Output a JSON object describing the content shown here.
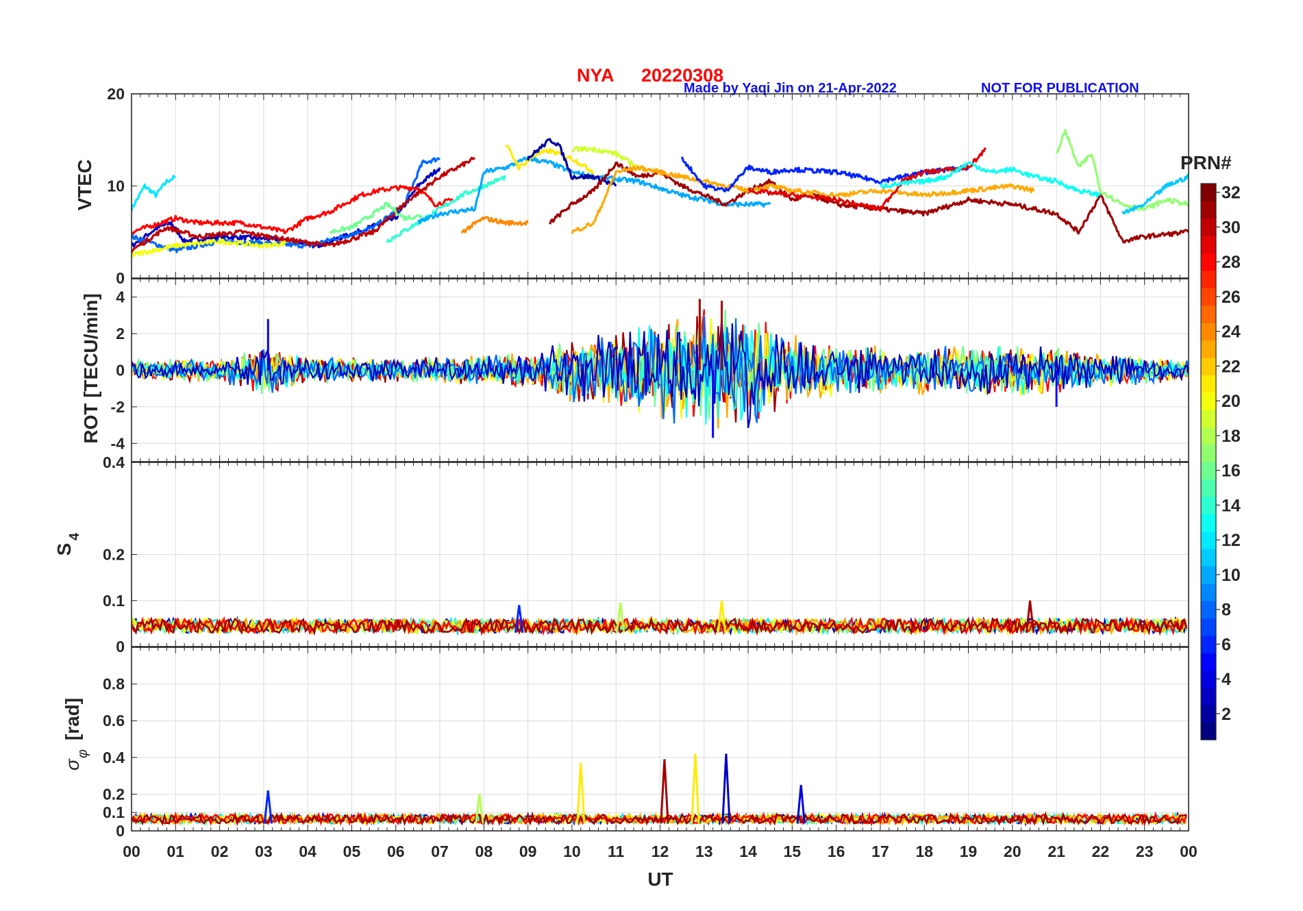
{
  "header": {
    "station": "NYA",
    "date": "20220308",
    "credit": "Made by Yaqi Jin on 21-Apr-2022",
    "notice": "NOT FOR PUBLICATION"
  },
  "colors": {
    "title": "#ff0000",
    "credit": "#1010ee"
  },
  "chart_data": {
    "type": "line",
    "x_axis": {
      "label": "UT",
      "ticks": [
        "00",
        "01",
        "02",
        "03",
        "04",
        "05",
        "06",
        "07",
        "08",
        "09",
        "10",
        "11",
        "12",
        "13",
        "14",
        "15",
        "16",
        "17",
        "18",
        "19",
        "20",
        "21",
        "22",
        "23",
        "00"
      ],
      "range_hours": [
        0,
        24
      ]
    },
    "colorbar": {
      "label": "PRN#",
      "range": [
        1,
        32
      ],
      "ticks": [
        "2",
        "4",
        "6",
        "8",
        "10",
        "12",
        "14",
        "16",
        "18",
        "20",
        "22",
        "24",
        "26",
        "28",
        "30",
        "32"
      ],
      "colormap": "jet",
      "levels": 32
    },
    "panels": [
      {
        "id": "vtec",
        "ylabel": "VTEC",
        "ylim": [
          0,
          20
        ],
        "yticks": [
          "0",
          "10",
          "20"
        ],
        "series_summary": [
          {
            "prn": 12,
            "points": [
              [
                0.0,
                7.5
              ],
              [
                0.3,
                10.0
              ],
              [
                0.55,
                9.0
              ],
              [
                0.8,
                10.5
              ],
              [
                1.0,
                11.0
              ]
            ]
          },
          {
            "prn": 3,
            "points": [
              [
                0.0,
                3.5
              ],
              [
                0.6,
                5.5
              ],
              [
                0.9,
                6.0
              ],
              [
                1.2,
                4.0
              ],
              [
                2.0,
                4.5
              ],
              [
                3.5,
                4.2
              ],
              [
                4.2,
                3.5
              ],
              [
                5.0,
                4.8
              ],
              [
                6.0,
                6.5
              ],
              [
                6.5,
                10.0
              ],
              [
                7.0,
                12.0
              ]
            ]
          },
          {
            "prn": 8,
            "points": [
              [
                0.0,
                4.5
              ],
              [
                1.0,
                3.0
              ],
              [
                2.0,
                4.0
              ],
              [
                3.0,
                3.8
              ],
              [
                4.0,
                3.5
              ],
              [
                4.8,
                4.5
              ],
              [
                5.5,
                5.5
              ],
              [
                6.2,
                8.0
              ],
              [
                6.6,
                12.5
              ],
              [
                7.0,
                13.0
              ]
            ]
          },
          {
            "prn": 28,
            "points": [
              [
                0.0,
                5.0
              ],
              [
                1.0,
                6.5
              ],
              [
                1.5,
                6.0
              ],
              [
                2.5,
                6.0
              ],
              [
                3.5,
                5.0
              ],
              [
                4.0,
                6.5
              ],
              [
                4.5,
                7.2
              ],
              [
                5.2,
                9.0
              ],
              [
                5.6,
                9.5
              ],
              [
                6.0,
                9.8
              ],
              [
                6.5,
                9.8
              ],
              [
                6.9,
                8.0
              ],
              [
                7.3,
                8.5
              ]
            ]
          },
          {
            "prn": 30,
            "points": [
              [
                0.0,
                3.0
              ],
              [
                0.8,
                5.5
              ],
              [
                1.5,
                4.5
              ],
              [
                2.5,
                5.0
              ],
              [
                3.5,
                4.2
              ],
              [
                4.5,
                3.5
              ],
              [
                5.5,
                5.0
              ],
              [
                6.3,
                8.5
              ],
              [
                7.0,
                11.0
              ],
              [
                7.8,
                13.0
              ]
            ]
          },
          {
            "prn": 20,
            "points": [
              [
                0.0,
                2.5
              ],
              [
                1.0,
                3.5
              ],
              [
                2.0,
                4.0
              ],
              [
                3.0,
                3.5
              ],
              [
                3.5,
                3.8
              ]
            ]
          },
          {
            "prn": 16,
            "points": [
              [
                4.5,
                5.0
              ],
              [
                5.0,
                5.5
              ],
              [
                5.5,
                7.0
              ],
              [
                5.8,
                8.0
              ],
              [
                6.2,
                6.5
              ],
              [
                6.6,
                6.8
              ]
            ]
          },
          {
            "prn": 14,
            "points": [
              [
                5.8,
                4.0
              ],
              [
                6.5,
                6.0
              ],
              [
                7.0,
                7.5
              ],
              [
                7.5,
                9.0
              ],
              [
                8.0,
                10.0
              ],
              [
                8.5,
                11.0
              ]
            ]
          },
          {
            "prn": 10,
            "points": [
              [
                6.5,
                6.0
              ],
              [
                7.0,
                7.0
              ],
              [
                7.8,
                7.5
              ],
              [
                8.0,
                11.5
              ],
              [
                8.5,
                12.0
              ],
              [
                9.0,
                13.0
              ],
              [
                9.5,
                12.5
              ],
              [
                10.0,
                11.5
              ],
              [
                10.5,
                11.0
              ],
              [
                11.5,
                10.5
              ],
              [
                12.5,
                9.0
              ],
              [
                13.5,
                8.0
              ],
              [
                14.5,
                8.0
              ]
            ]
          },
          {
            "prn": 24,
            "points": [
              [
                7.5,
                5.0
              ],
              [
                8.0,
                6.5
              ],
              [
                8.5,
                6.0
              ],
              [
                9.0,
                6.0
              ]
            ]
          },
          {
            "prn": 21,
            "points": [
              [
                8.5,
                14.5
              ],
              [
                8.8,
                12.0
              ],
              [
                9.2,
                13.5
              ],
              [
                9.5,
                13.8
              ],
              [
                10.0,
                13.0
              ],
              [
                10.5,
                11.5
              ]
            ]
          },
          {
            "prn": 2,
            "points": [
              [
                9.0,
                13.0
              ],
              [
                9.5,
                15.0
              ],
              [
                9.7,
                14.5
              ],
              [
                10.0,
                11.0
              ],
              [
                10.5,
                11.0
              ],
              [
                11.0,
                10.0
              ]
            ]
          },
          {
            "prn": 31,
            "points": [
              [
                9.5,
                6.0
              ],
              [
                10.0,
                8.0
              ],
              [
                10.5,
                9.5
              ],
              [
                11.0,
                12.5
              ],
              [
                11.5,
                11.0
              ],
              [
                12.0,
                11.5
              ],
              [
                12.5,
                10.0
              ],
              [
                13.0,
                9.0
              ],
              [
                13.5,
                8.0
              ],
              [
                14.0,
                9.5
              ],
              [
                14.5,
                10.5
              ],
              [
                15.0,
                8.5
              ],
              [
                15.5,
                9.0
              ],
              [
                16.0,
                8.0
              ],
              [
                17.0,
                7.5
              ],
              [
                18.0,
                7.0
              ],
              [
                19.0,
                8.5
              ],
              [
                20.0,
                8.0
              ],
              [
                21.0,
                7.0
              ],
              [
                21.5,
                5.0
              ],
              [
                22.0,
                9.0
              ],
              [
                22.5,
                4.0
              ],
              [
                23.0,
                4.5
              ],
              [
                24.0,
                5.0
              ]
            ]
          },
          {
            "prn": 19,
            "points": [
              [
                10.0,
                14.0
              ],
              [
                10.5,
                14.0
              ],
              [
                11.0,
                13.5
              ],
              [
                11.5,
                12.0
              ]
            ]
          },
          {
            "prn": 23,
            "points": [
              [
                10.0,
                5.0
              ],
              [
                10.5,
                6.0
              ],
              [
                11.0,
                11.5
              ],
              [
                11.5,
                12.0
              ],
              [
                12.0,
                11.5
              ],
              [
                12.5,
                11.0
              ],
              [
                13.0,
                10.5
              ],
              [
                13.5,
                10.0
              ],
              [
                14.0,
                9.5
              ],
              [
                14.5,
                10.0
              ],
              [
                15.0,
                9.5
              ],
              [
                16.0,
                9.0
              ],
              [
                17.0,
                9.5
              ],
              [
                18.0,
                9.0
              ],
              [
                19.0,
                9.5
              ],
              [
                20.0,
                10.0
              ],
              [
                20.5,
                9.5
              ]
            ]
          },
          {
            "prn": 6,
            "points": [
              [
                12.5,
                13.0
              ],
              [
                13.0,
                10.0
              ],
              [
                13.5,
                9.5
              ],
              [
                14.0,
                12.0
              ],
              [
                14.5,
                11.5
              ],
              [
                15.0,
                11.8
              ],
              [
                16.0,
                11.5
              ],
              [
                17.0,
                10.5
              ],
              [
                18.0,
                11.5
              ],
              [
                19.0,
                12.0
              ]
            ]
          },
          {
            "prn": 29,
            "points": [
              [
                14.0,
                9.5
              ],
              [
                15.0,
                9.0
              ],
              [
                16.0,
                8.5
              ],
              [
                17.0,
                7.5
              ],
              [
                17.5,
                10.5
              ],
              [
                18.0,
                11.5
              ],
              [
                19.0,
                12.0
              ],
              [
                19.4,
                14.0
              ]
            ]
          },
          {
            "prn": 13,
            "points": [
              [
                17.0,
                10.0
              ],
              [
                18.0,
                10.5
              ],
              [
                18.5,
                11.0
              ],
              [
                19.0,
                12.5
              ],
              [
                19.5,
                11.5
              ],
              [
                20.0,
                11.8
              ],
              [
                20.5,
                11.0
              ],
              [
                21.0,
                10.5
              ],
              [
                21.5,
                9.5
              ],
              [
                22.0,
                9.0
              ]
            ]
          },
          {
            "prn": 17,
            "points": [
              [
                21.0,
                13.5
              ],
              [
                21.2,
                16.0
              ],
              [
                21.5,
                12.0
              ],
              [
                21.8,
                13.5
              ],
              [
                22.0,
                9.5
              ],
              [
                22.5,
                8.0
              ],
              [
                23.0,
                7.5
              ],
              [
                23.5,
                8.5
              ],
              [
                24.0,
                8.0
              ]
            ]
          },
          {
            "prn": 11,
            "points": [
              [
                22.5,
                7.0
              ],
              [
                23.0,
                8.0
              ],
              [
                23.5,
                10.0
              ],
              [
                24.0,
                11.0
              ]
            ]
          }
        ]
      },
      {
        "id": "rot",
        "ylabel": "ROT [TECU/min]",
        "ylim": [
          -5,
          5
        ],
        "yticks": [
          "-4",
          "-2",
          "0",
          "2",
          "4"
        ],
        "envelope_summary": {
          "description_hours": [
            0,
            2,
            3,
            4,
            6,
            8,
            9,
            10,
            11,
            12,
            13,
            14,
            15,
            16,
            18,
            20,
            22,
            24
          ],
          "amplitude": [
            0.6,
            0.7,
            1.5,
            0.8,
            0.7,
            0.9,
            1.0,
            1.8,
            2.2,
            3.0,
            3.9,
            3.6,
            2.0,
            1.6,
            1.4,
            1.6,
            1.0,
            0.6
          ]
        },
        "notable_spikes": [
          [
            3.1,
            2.8
          ],
          [
            12.9,
            3.9
          ],
          [
            13.2,
            -3.7
          ],
          [
            13.4,
            3.8
          ],
          [
            21.0,
            -2.0
          ]
        ]
      },
      {
        "id": "s4",
        "ylabel": "S",
        "ylabel_sub": "4",
        "ylim": [
          0,
          0.4
        ],
        "yticks": [
          "0",
          "0.1",
          "0.2",
          "0.4"
        ],
        "baseline_summary": {
          "typical_low": 0.03,
          "typical_high": 0.06
        },
        "notable_spikes": [
          [
            8.8,
            0.09
          ],
          [
            11.1,
            0.095
          ],
          [
            13.4,
            0.1
          ],
          [
            20.4,
            0.1
          ]
        ]
      },
      {
        "id": "sigma_phi",
        "ylabel": "σ",
        "ylabel_sub": "φ",
        "ylabel_unit": "[rad]",
        "ylim": [
          0,
          1.0
        ],
        "yticks": [
          "0",
          "0.1",
          "0.2",
          "0.4",
          "0.6",
          "0.8"
        ],
        "baseline_summary": {
          "typical_low": 0.04,
          "typical_high": 0.09
        },
        "notable_spikes": [
          [
            3.1,
            0.22
          ],
          [
            7.9,
            0.2
          ],
          [
            10.2,
            0.37
          ],
          [
            12.1,
            0.39
          ],
          [
            12.8,
            0.42
          ],
          [
            13.5,
            0.42
          ],
          [
            15.2,
            0.25
          ]
        ]
      }
    ]
  }
}
